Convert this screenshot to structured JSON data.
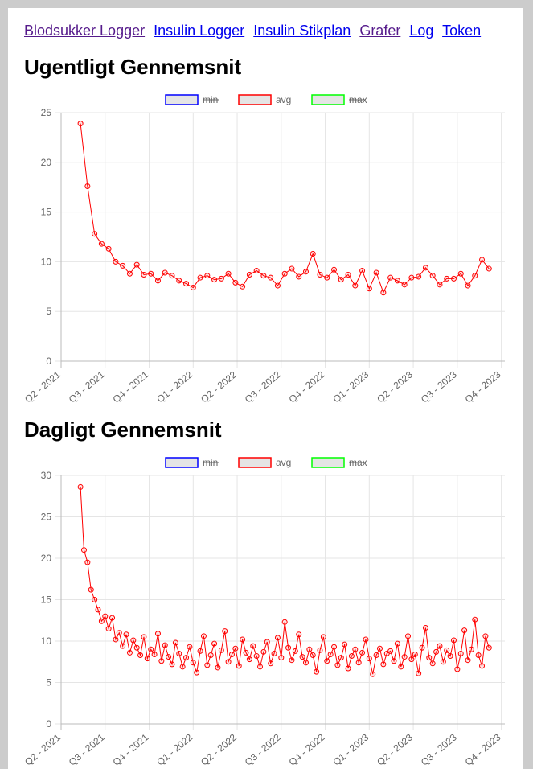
{
  "nav": {
    "links": [
      "Blodsukker Logger",
      "Insulin Logger",
      "Insulin Stikplan",
      "Grafer",
      "Log",
      "Token"
    ]
  },
  "chart_data": [
    {
      "type": "line",
      "title": "Ugentligt Gennemsnit",
      "x": [
        2021.36,
        2021.4,
        2021.44,
        2021.48,
        2021.52,
        2021.56,
        2021.6,
        2021.64,
        2021.68,
        2021.72,
        2021.76,
        2021.8,
        2021.84,
        2021.88,
        2021.92,
        2021.96,
        2022,
        2022.04,
        2022.08,
        2022.12,
        2022.16,
        2022.2,
        2022.24,
        2022.28,
        2022.32,
        2022.36,
        2022.4,
        2022.44,
        2022.48,
        2022.52,
        2022.56,
        2022.6,
        2022.64,
        2022.68,
        2022.72,
        2022.76,
        2022.8,
        2022.84,
        2022.88,
        2022.92,
        2022.96,
        2023,
        2023.04,
        2023.08,
        2023.12,
        2023.16,
        2023.2,
        2023.24,
        2023.28,
        2023.32,
        2023.36,
        2023.4,
        2023.44,
        2023.48,
        2023.52,
        2023.56,
        2023.6,
        2023.64,
        2023.68
      ],
      "series": [
        {
          "name": "min",
          "color": "#0000ff",
          "hidden": true
        },
        {
          "name": "avg",
          "color": "#ff0000",
          "values": [
            23.9,
            17.6,
            12.8,
            11.8,
            11.3,
            10.0,
            9.6,
            8.8,
            9.7,
            8.7,
            8.8,
            8.1,
            8.9,
            8.6,
            8.1,
            7.8,
            7.4,
            8.4,
            8.6,
            8.2,
            8.3,
            8.8,
            7.9,
            7.5,
            8.7,
            9.1,
            8.6,
            8.4,
            7.6,
            8.8,
            9.3,
            8.5,
            9.0,
            10.8,
            8.7,
            8.4,
            9.2,
            8.2,
            8.7,
            7.6,
            9.1,
            7.3,
            8.9,
            6.9,
            8.4,
            8.1,
            7.7,
            8.4,
            8.5,
            9.4,
            8.6,
            7.7,
            8.3,
            8.3,
            8.8,
            7.6,
            8.6,
            10.2,
            9.3
          ]
        },
        {
          "name": "max",
          "color": "#00ff00",
          "hidden": true
        }
      ],
      "xlim": [
        2021.25,
        2023.77
      ],
      "xticks": [
        {
          "value": 2021.25,
          "label": "Q2 - 2021"
        },
        {
          "value": 2021.5,
          "label": "Q3 - 2021"
        },
        {
          "value": 2021.75,
          "label": "Q4 - 2021"
        },
        {
          "value": 2022,
          "label": "Q1 - 2022"
        },
        {
          "value": 2022.25,
          "label": "Q2 - 2022"
        },
        {
          "value": 2022.5,
          "label": "Q3 - 2022"
        },
        {
          "value": 2022.75,
          "label": "Q4 - 2022"
        },
        {
          "value": 2023,
          "label": "Q1 - 2023"
        },
        {
          "value": 2023.25,
          "label": "Q2 - 2023"
        },
        {
          "value": 2023.5,
          "label": "Q3 - 2023"
        },
        {
          "value": 2023.75,
          "label": "Q4 - 2023"
        }
      ],
      "ylim": [
        0,
        25
      ],
      "yticks": [
        0,
        5,
        10,
        15,
        20,
        25
      ],
      "grid": true,
      "legend": "top"
    },
    {
      "type": "line",
      "title": "Dagligt Gennemsnit",
      "x": [
        2021.36,
        2021.38,
        2021.4,
        2021.42,
        2021.44,
        2021.46,
        2021.48,
        2021.5,
        2021.52,
        2021.54,
        2021.56,
        2021.58,
        2021.6,
        2021.62,
        2021.64,
        2021.66,
        2021.68,
        2021.7,
        2021.72,
        2021.74,
        2021.76,
        2021.78,
        2021.8,
        2021.82,
        2021.84,
        2021.86,
        2021.88,
        2021.9,
        2021.92,
        2021.94,
        2021.96,
        2021.98,
        2022,
        2022.02,
        2022.04,
        2022.06,
        2022.08,
        2022.1,
        2022.12,
        2022.14,
        2022.16,
        2022.18,
        2022.2,
        2022.22,
        2022.24,
        2022.26,
        2022.28,
        2022.3,
        2022.32,
        2022.34,
        2022.36,
        2022.38,
        2022.4,
        2022.42,
        2022.44,
        2022.46,
        2022.48,
        2022.5,
        2022.52,
        2022.54,
        2022.56,
        2022.58,
        2022.6,
        2022.62,
        2022.64,
        2022.66,
        2022.68,
        2022.7,
        2022.72,
        2022.74,
        2022.76,
        2022.78,
        2022.8,
        2022.82,
        2022.84,
        2022.86,
        2022.88,
        2022.9,
        2022.92,
        2022.94,
        2022.96,
        2022.98,
        2023,
        2023.02,
        2023.04,
        2023.06,
        2023.08,
        2023.1,
        2023.12,
        2023.14,
        2023.16,
        2023.18,
        2023.2,
        2023.22,
        2023.24,
        2023.26,
        2023.28,
        2023.3,
        2023.32,
        2023.34,
        2023.36,
        2023.38,
        2023.4,
        2023.42,
        2023.44,
        2023.46,
        2023.48,
        2023.5,
        2023.52,
        2023.54,
        2023.56,
        2023.58,
        2023.6,
        2023.62,
        2023.64,
        2023.66,
        2023.68
      ],
      "series": [
        {
          "name": "min",
          "color": "#0000ff",
          "hidden": true
        },
        {
          "name": "avg",
          "color": "#ff0000",
          "values": [
            28.6,
            21.0,
            19.5,
            16.2,
            15.0,
            13.8,
            12.4,
            13.0,
            11.5,
            12.8,
            10.2,
            11.0,
            9.4,
            10.8,
            8.6,
            10.1,
            9.2,
            8.3,
            10.5,
            7.9,
            9.0,
            8.4,
            10.9,
            7.6,
            9.5,
            8.1,
            7.2,
            9.8,
            8.5,
            6.9,
            8.0,
            9.3,
            7.4,
            6.2,
            8.8,
            10.6,
            7.1,
            8.3,
            9.7,
            6.8,
            8.9,
            11.2,
            7.5,
            8.4,
            9.1,
            7.0,
            10.2,
            8.6,
            7.8,
            9.4,
            8.2,
            6.9,
            8.7,
            9.9,
            7.3,
            8.5,
            10.4,
            8.0,
            12.3,
            9.2,
            7.7,
            8.8,
            10.8,
            8.1,
            7.4,
            9.0,
            8.3,
            6.3,
            8.9,
            10.5,
            7.6,
            8.4,
            9.3,
            7.1,
            8.0,
            9.6,
            6.7,
            8.2,
            9.0,
            7.4,
            8.6,
            10.2,
            7.9,
            6.0,
            8.3,
            9.1,
            7.2,
            8.5,
            8.8,
            7.6,
            9.7,
            6.9,
            8.1,
            10.6,
            7.8,
            8.4,
            6.1,
            9.2,
            11.6,
            8.0,
            7.3,
            8.7,
            9.4,
            7.5,
            8.9,
            8.2,
            10.1,
            6.6,
            8.5,
            11.3,
            7.7,
            9.0,
            12.6,
            8.3,
            7.0,
            10.6,
            9.2
          ]
        },
        {
          "name": "max",
          "color": "#00ff00",
          "hidden": true
        }
      ],
      "xlim": [
        2021.25,
        2023.77
      ],
      "xticks": [
        {
          "value": 2021.25,
          "label": "Q2 - 2021"
        },
        {
          "value": 2021.5,
          "label": "Q3 - 2021"
        },
        {
          "value": 2021.75,
          "label": "Q4 - 2021"
        },
        {
          "value": 2022,
          "label": "Q1 - 2022"
        },
        {
          "value": 2022.25,
          "label": "Q2 - 2022"
        },
        {
          "value": 2022.5,
          "label": "Q3 - 2022"
        },
        {
          "value": 2022.75,
          "label": "Q4 - 2022"
        },
        {
          "value": 2023,
          "label": "Q1 - 2023"
        },
        {
          "value": 2023.25,
          "label": "Q2 - 2023"
        },
        {
          "value": 2023.5,
          "label": "Q3 - 2023"
        },
        {
          "value": 2023.75,
          "label": "Q4 - 2023"
        }
      ],
      "ylim": [
        0,
        30
      ],
      "yticks": [
        0,
        5,
        10,
        15,
        20,
        25,
        30
      ],
      "grid": true,
      "legend": "top"
    }
  ]
}
